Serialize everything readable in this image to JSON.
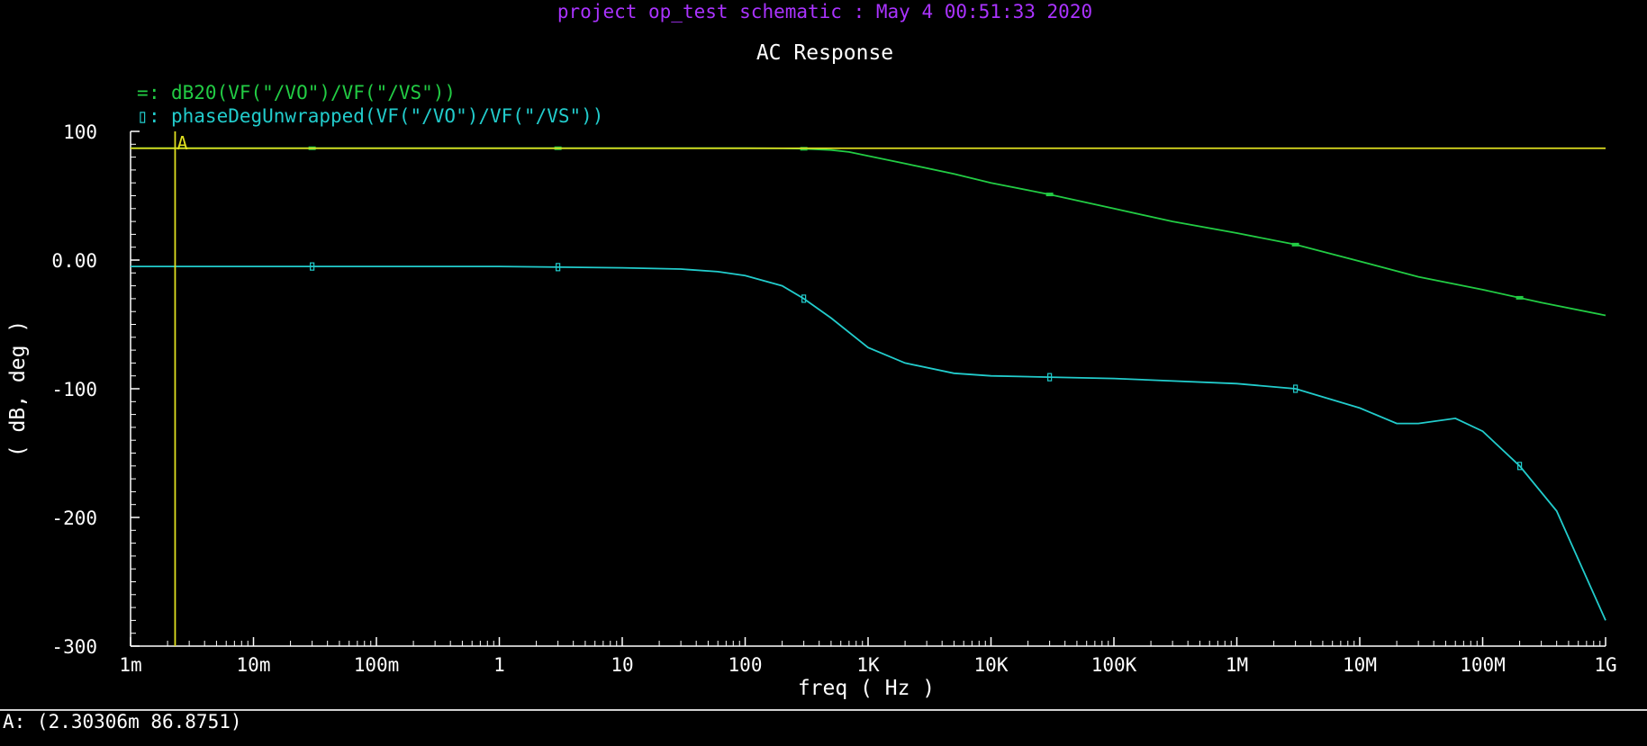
{
  "header": {
    "project_line": "project op_test schematic : May  4 00:51:33 2020",
    "colors": {
      "project_line": "#aa33ff",
      "title": "#ffffff",
      "axes": "#ffffff",
      "marker": "#e0e020",
      "background": "#000000"
    }
  },
  "status_bar": {
    "readout": "A: (2.30306m 86.8751)"
  },
  "chart_data": {
    "type": "line",
    "title": "AC Response",
    "xlabel": "freq ( Hz )",
    "ylabel": "( dB, deg )",
    "xscale": "log",
    "xlim": [
      0.001,
      1000000000
    ],
    "ylim": [
      -300,
      100
    ],
    "x_ticks": [
      0.001,
      0.01,
      0.1,
      1,
      10,
      100,
      1000,
      10000,
      100000,
      1000000,
      10000000,
      100000000,
      1000000000
    ],
    "x_tick_labels": [
      "1m",
      "10m",
      "100m",
      "1",
      "10",
      "100",
      "1K",
      "10K",
      "100K",
      "1M",
      "10M",
      "100M",
      "1G"
    ],
    "y_ticks": [
      100,
      0,
      -100,
      -200,
      -300
    ],
    "y_tick_labels": [
      "100",
      "0.00",
      "-100",
      "-200",
      "-300"
    ],
    "legend_position": "top-left",
    "marker": {
      "label": "A",
      "x": 0.00230306,
      "y": 86.8751
    },
    "series": [
      {
        "name": "dB20(VF(\"/VO\")/VF(\"/VS\"))",
        "legend_symbol": "=",
        "color": "#22cc44",
        "x": [
          0.001,
          0.1,
          10,
          100,
          200,
          300,
          500,
          700,
          1000,
          2000,
          5000,
          10000,
          30000,
          100000,
          300000,
          1000000,
          3000000,
          10000000,
          30000000,
          100000000,
          300000000,
          1000000000
        ],
        "y": [
          86.9,
          86.9,
          86.9,
          86.9,
          86.8,
          86.5,
          85.5,
          84,
          81,
          75,
          67,
          60,
          51,
          40,
          30,
          21,
          12,
          -1,
          -13,
          -23,
          -33,
          -43
        ]
      },
      {
        "name": "phaseDegUnwrapped(VF(\"/VO\")/VF(\"/VS\"))",
        "legend_symbol": "▯",
        "color": "#22cccc",
        "x": [
          0.001,
          1,
          10,
          30,
          60,
          100,
          200,
          300,
          500,
          1000,
          2000,
          5000,
          10000,
          30000,
          100000,
          1000000,
          3000000,
          10000000,
          20000000,
          30000000,
          60000000,
          100000000,
          200000000,
          400000000,
          1000000000
        ],
        "y": [
          -5,
          -5,
          -6,
          -7,
          -9,
          -12,
          -20,
          -30,
          -45,
          -68,
          -80,
          -88,
          -90,
          -91,
          -92,
          -96,
          -100,
          -115,
          -127,
          -127,
          -123,
          -133,
          -160,
          -195,
          -280
        ]
      }
    ]
  }
}
